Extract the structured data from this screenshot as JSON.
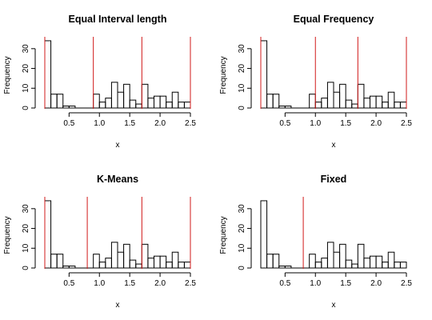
{
  "chart_data": [
    {
      "type": "bar",
      "title": "Equal Interval length",
      "xlabel": "x",
      "ylabel": "Frequency",
      "bin_edges": [
        0.1,
        0.2,
        0.3,
        0.4,
        0.5,
        0.6,
        0.7,
        0.8,
        0.9,
        1.0,
        1.1,
        1.2,
        1.3,
        1.4,
        1.5,
        1.6,
        1.7,
        1.8,
        1.9,
        2.0,
        2.1,
        2.2,
        2.3,
        2.4,
        2.5
      ],
      "values": [
        34,
        7,
        7,
        1,
        1,
        0,
        0,
        0,
        7,
        3,
        5,
        13,
        8,
        12,
        4,
        2,
        12,
        5,
        6,
        6,
        3,
        8,
        3,
        3
      ],
      "xticks": [
        0.5,
        1.0,
        1.5,
        2.0,
        2.5
      ],
      "xtick_labels": [
        "0.5",
        "1.0",
        "1.5",
        "2.0",
        "2.5"
      ],
      "yticks": [
        0,
        10,
        20,
        30
      ],
      "ytick_labels": [
        "0",
        "10",
        "20",
        "30"
      ],
      "cut_points": [
        0.1,
        0.9,
        1.7,
        2.5
      ],
      "cut_color": "#d01818"
    },
    {
      "type": "bar",
      "title": "Equal Frequency",
      "xlabel": "x",
      "ylabel": "Frequency",
      "bin_edges": [
        0.1,
        0.2,
        0.3,
        0.4,
        0.5,
        0.6,
        0.7,
        0.8,
        0.9,
        1.0,
        1.1,
        1.2,
        1.3,
        1.4,
        1.5,
        1.6,
        1.7,
        1.8,
        1.9,
        2.0,
        2.1,
        2.2,
        2.3,
        2.4,
        2.5
      ],
      "values": [
        34,
        7,
        7,
        1,
        1,
        0,
        0,
        0,
        7,
        3,
        5,
        13,
        8,
        12,
        4,
        2,
        12,
        5,
        6,
        6,
        3,
        8,
        3,
        3
      ],
      "xticks": [
        0.5,
        1.0,
        1.5,
        2.0,
        2.5
      ],
      "xtick_labels": [
        "0.5",
        "1.0",
        "1.5",
        "2.0",
        "2.5"
      ],
      "yticks": [
        0,
        10,
        20,
        30
      ],
      "ytick_labels": [
        "0",
        "10",
        "20",
        "30"
      ],
      "cut_points": [
        0.1,
        1.0,
        1.7,
        2.5
      ],
      "cut_color": "#d01818"
    },
    {
      "type": "bar",
      "title": "K-Means",
      "xlabel": "x",
      "ylabel": "Frequency",
      "bin_edges": [
        0.1,
        0.2,
        0.3,
        0.4,
        0.5,
        0.6,
        0.7,
        0.8,
        0.9,
        1.0,
        1.1,
        1.2,
        1.3,
        1.4,
        1.5,
        1.6,
        1.7,
        1.8,
        1.9,
        2.0,
        2.1,
        2.2,
        2.3,
        2.4,
        2.5
      ],
      "values": [
        34,
        7,
        7,
        1,
        1,
        0,
        0,
        0,
        7,
        3,
        5,
        13,
        8,
        12,
        4,
        2,
        12,
        5,
        6,
        6,
        3,
        8,
        3,
        3
      ],
      "xticks": [
        0.5,
        1.0,
        1.5,
        2.0,
        2.5
      ],
      "xtick_labels": [
        "0.5",
        "1.0",
        "1.5",
        "2.0",
        "2.5"
      ],
      "yticks": [
        0,
        10,
        20,
        30
      ],
      "ytick_labels": [
        "0",
        "10",
        "20",
        "30"
      ],
      "cut_points": [
        0.1,
        0.8,
        1.7,
        2.5
      ],
      "cut_color": "#d01818"
    },
    {
      "type": "bar",
      "title": "Fixed",
      "xlabel": "x",
      "ylabel": "Frequency",
      "bin_edges": [
        0.1,
        0.2,
        0.3,
        0.4,
        0.5,
        0.6,
        0.7,
        0.8,
        0.9,
        1.0,
        1.1,
        1.2,
        1.3,
        1.4,
        1.5,
        1.6,
        1.7,
        1.8,
        1.9,
        2.0,
        2.1,
        2.2,
        2.3,
        2.4,
        2.5
      ],
      "values": [
        34,
        7,
        7,
        1,
        1,
        0,
        0,
        0,
        7,
        3,
        5,
        13,
        8,
        12,
        4,
        2,
        12,
        5,
        6,
        6,
        3,
        8,
        3,
        3
      ],
      "xticks": [
        0.5,
        1.0,
        1.5,
        2.0,
        2.5
      ],
      "xtick_labels": [
        "0.5",
        "1.0",
        "1.5",
        "2.0",
        "2.5"
      ],
      "yticks": [
        0,
        10,
        20,
        30
      ],
      "ytick_labels": [
        "0",
        "10",
        "20",
        "30"
      ],
      "cut_points": [
        0.8
      ],
      "cut_color": "#d01818"
    }
  ]
}
